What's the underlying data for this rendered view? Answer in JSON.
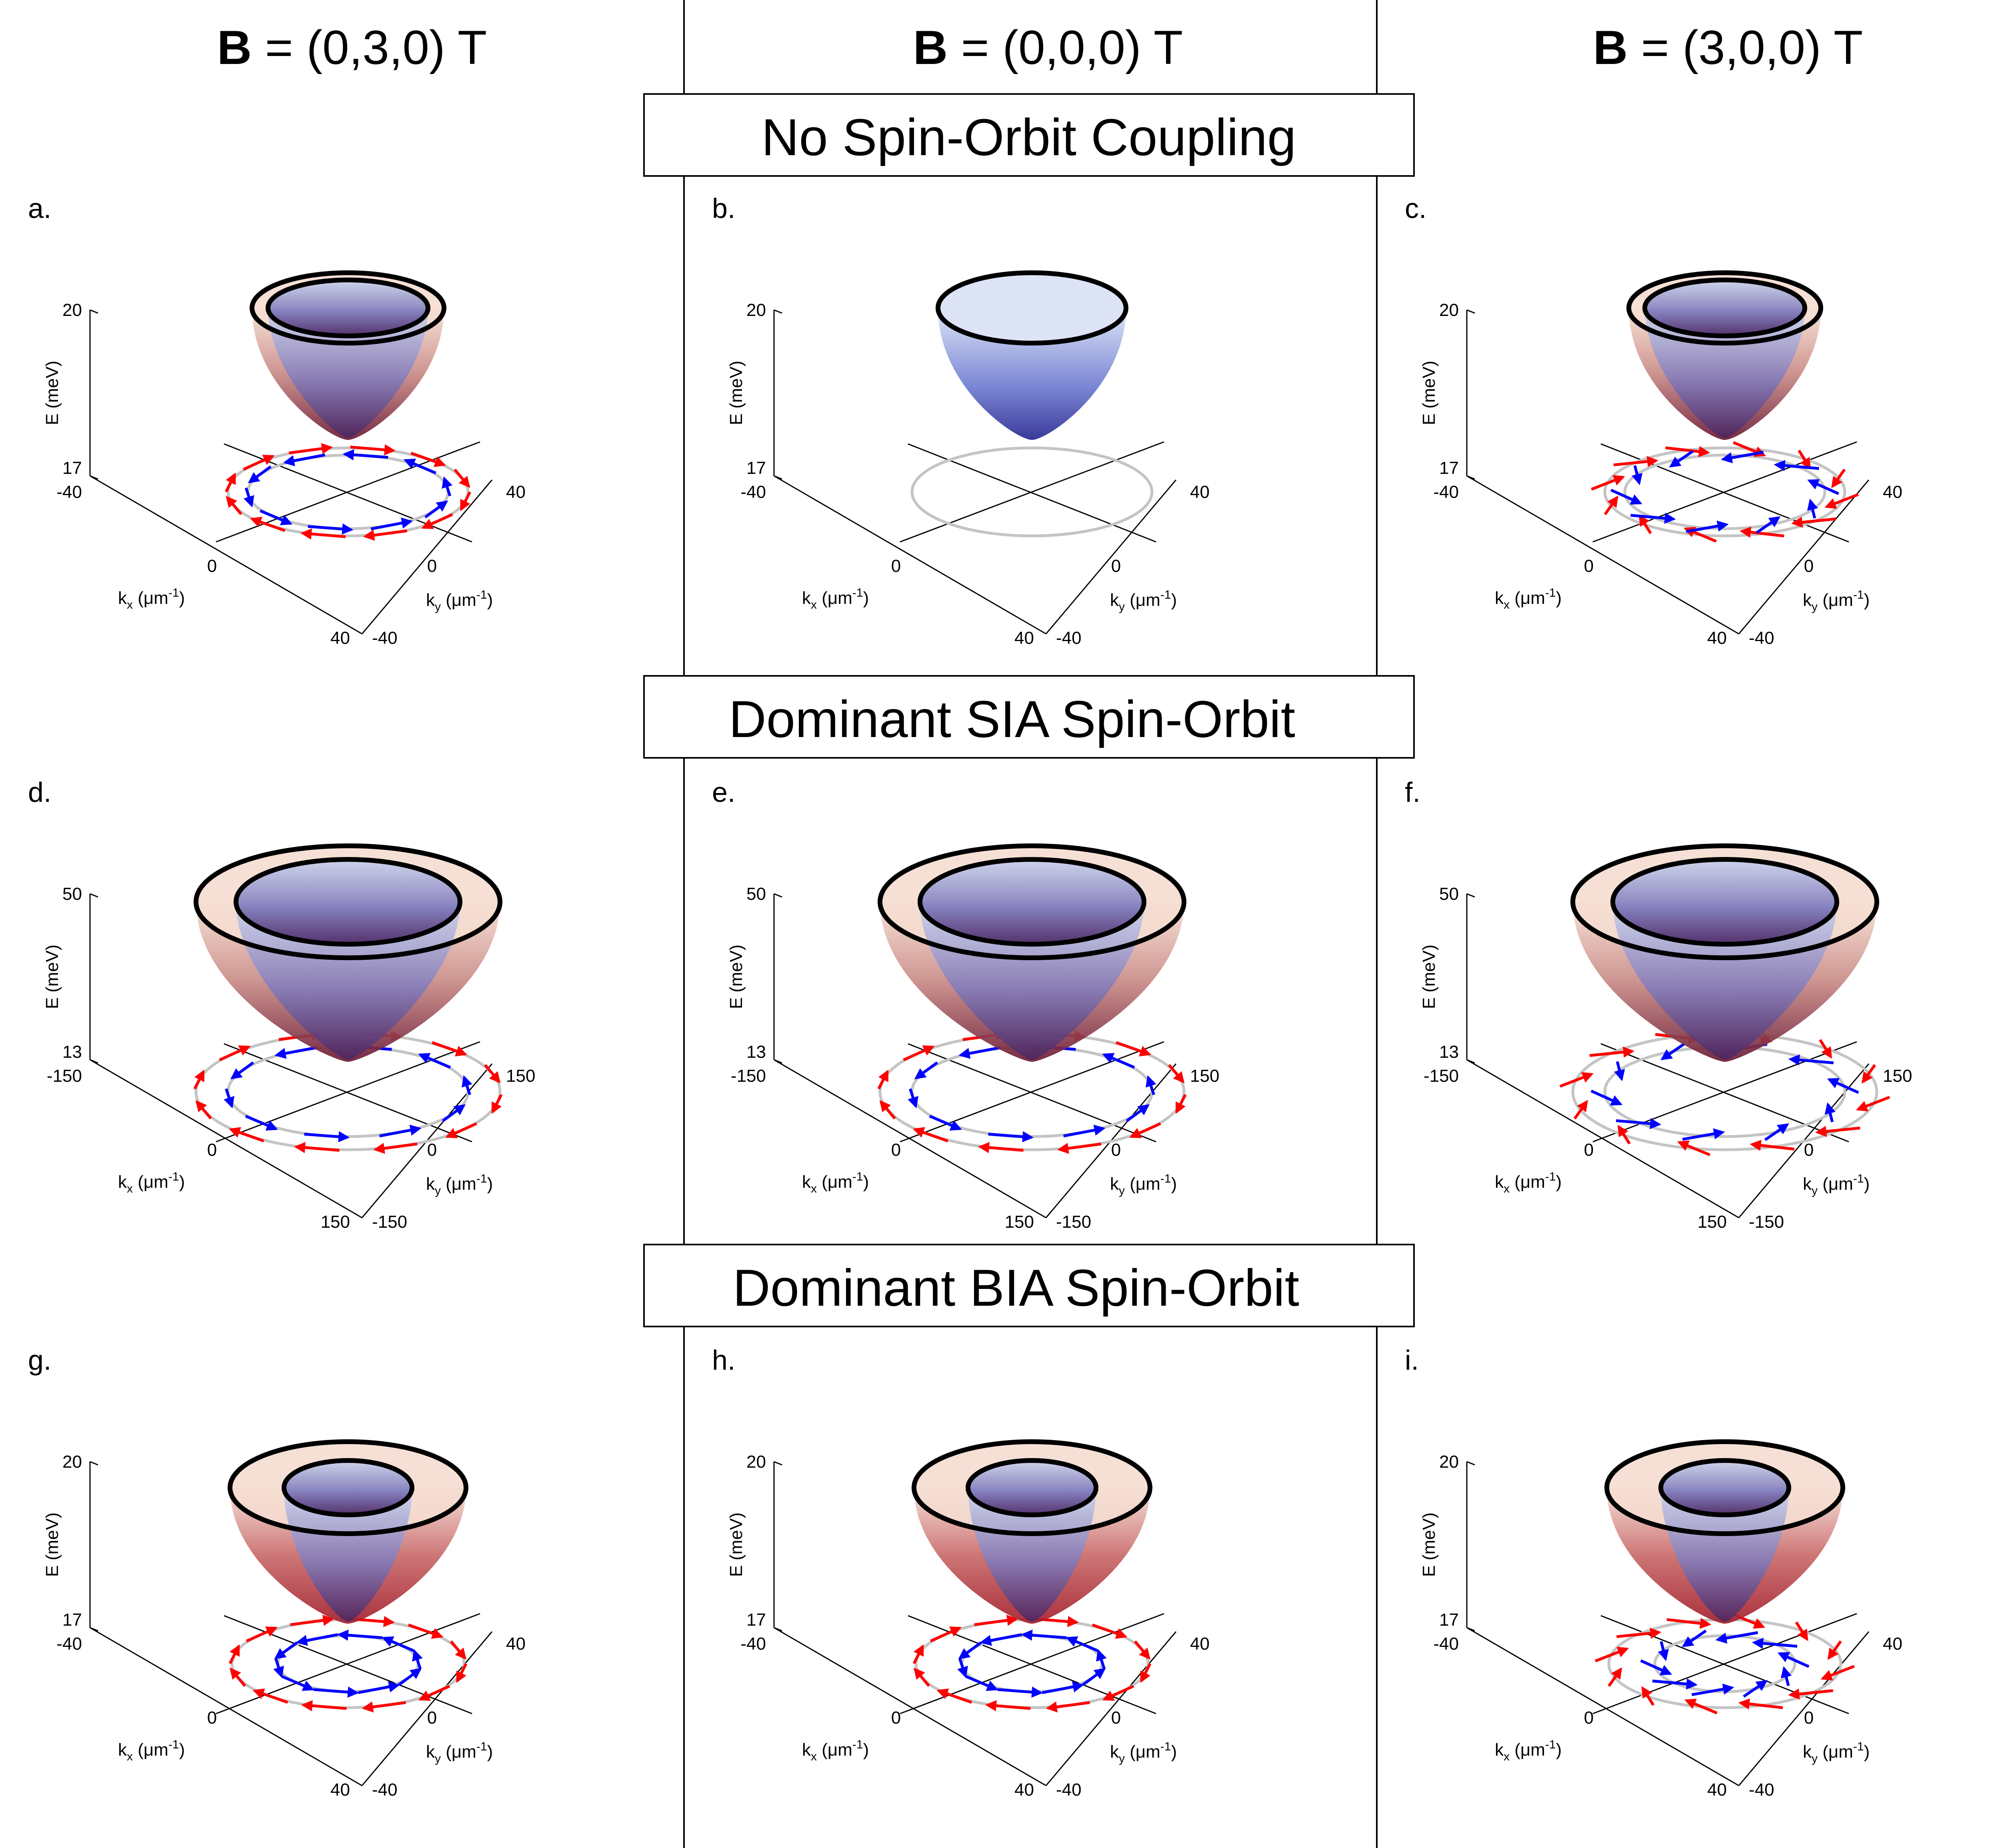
{
  "columns": [
    {
      "bold": "B",
      "rest": " = (0,3,0) T"
    },
    {
      "bold": "B",
      "rest": " = (0,0,0) T"
    },
    {
      "bold": "B",
      "rest": " = (3,0,0) T"
    }
  ],
  "rows": [
    {
      "title": "No Spin-Orbit Coupling",
      "e_ticks": [
        "20",
        "17"
      ],
      "k_ticks": {
        "kx_neg": "-40",
        "kx_zero": "0",
        "kx_pos": "40",
        "ky_neg": "-40",
        "ky_zero": "0",
        "ky_pos": "40"
      },
      "panels": [
        {
          "label": "a.",
          "field": "y",
          "split": true
        },
        {
          "label": "b.",
          "field": "none",
          "split": false
        },
        {
          "label": "c.",
          "field": "x",
          "split": true
        }
      ]
    },
    {
      "title": "Dominant SIA Spin-Orbit",
      "e_ticks": [
        "50",
        "13"
      ],
      "k_ticks": {
        "kx_neg": "-150",
        "kx_zero": "0",
        "kx_pos": "150",
        "ky_neg": "-150",
        "ky_zero": "0",
        "ky_pos": "150"
      },
      "panels": [
        {
          "label": "d.",
          "field": "y",
          "split": true
        },
        {
          "label": "e.",
          "field": "none",
          "split": true
        },
        {
          "label": "f.",
          "field": "x",
          "split": true
        }
      ]
    },
    {
      "title": "Dominant BIA Spin-Orbit",
      "e_ticks": [
        "20",
        "17"
      ],
      "k_ticks": {
        "kx_neg": "-40",
        "kx_zero": "0",
        "kx_pos": "40",
        "ky_neg": "-40",
        "ky_zero": "0",
        "ky_pos": "40"
      },
      "panels": [
        {
          "label": "g.",
          "field": "y",
          "split": true
        },
        {
          "label": "h.",
          "field": "none",
          "split": true
        },
        {
          "label": "i.",
          "field": "x",
          "split": true
        }
      ]
    }
  ],
  "axis_labels": {
    "energy": "E (meV)",
    "kx_letter": "k",
    "kx_sub": "x",
    "ky_letter": "k",
    "ky_sub": "y",
    "unit_open": " (",
    "unit_mu": "μm",
    "unit_sup": "-1",
    "unit_close": ")"
  },
  "colors": {
    "spin_up": "#ff0000",
    "spin_down": "#0000ff",
    "outer_band": "#b85c5c",
    "inner_band": "#5a5ab8",
    "band_bottom": "#5a1438",
    "slice_ring": "#c4c4c4"
  }
}
